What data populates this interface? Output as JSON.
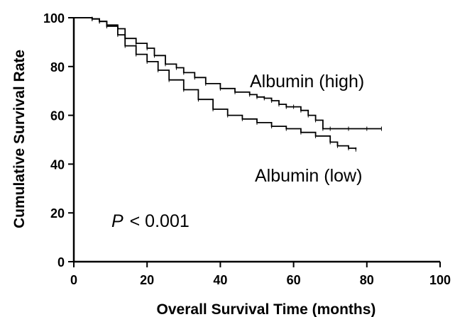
{
  "chart_data": {
    "type": "line",
    "ylabel": "Cumulative Survival Rate",
    "xlabel": "Overall Survival Time (months)",
    "xlim": [
      0,
      100
    ],
    "ylim": [
      0,
      100
    ],
    "xticks": [
      "0",
      "20",
      "40",
      "60",
      "80",
      "100"
    ],
    "yticks": [
      "0",
      "20",
      "40",
      "60",
      "80",
      "100"
    ],
    "grid": false,
    "annotation": {
      "p_symbol": "P",
      "p_text": "< 0.001"
    },
    "series": [
      {
        "name": "Albumin (high)",
        "x": [
          0,
          5,
          7,
          9,
          12,
          14,
          17,
          20,
          22,
          25,
          28,
          30,
          33,
          36,
          40,
          44,
          48,
          50,
          52,
          54,
          56,
          58,
          60,
          62,
          64,
          66,
          68,
          70,
          75,
          80,
          84
        ],
        "y": [
          100,
          99.5,
          98.5,
          97,
          95.5,
          91.5,
          89.5,
          87.5,
          84.5,
          81,
          79.5,
          77.5,
          75.5,
          73,
          71,
          69.5,
          68.5,
          67.5,
          67,
          66,
          64.5,
          63.5,
          63.5,
          62,
          60,
          58,
          54.5,
          54.5,
          54.5,
          54.5,
          54.5
        ]
      },
      {
        "name": "Albumin (low)",
        "x": [
          0,
          5,
          7,
          9,
          12,
          14,
          17,
          20,
          23,
          26,
          30,
          34,
          38,
          42,
          46,
          50,
          54,
          58,
          62,
          66,
          70,
          72,
          75,
          77
        ],
        "y": [
          100,
          99.5,
          98.5,
          96.5,
          93,
          88.5,
          85,
          82,
          78.5,
          74.5,
          70.5,
          66.5,
          62.5,
          60,
          58.5,
          57,
          55.5,
          54.5,
          53,
          51.5,
          49,
          47.5,
          46.5,
          46
        ]
      }
    ]
  }
}
